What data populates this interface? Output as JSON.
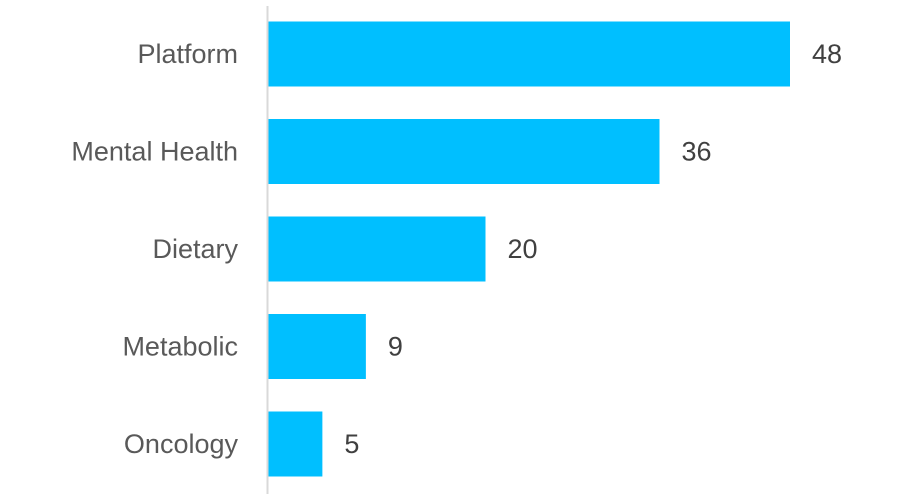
{
  "chart_data": {
    "type": "bar",
    "orientation": "horizontal",
    "categories": [
      "Platform",
      "Mental Health",
      "Dietary",
      "Metabolic",
      "Oncology"
    ],
    "values": [
      48,
      36,
      20,
      9,
      5
    ],
    "title": "",
    "xlabel": "",
    "ylabel": "",
    "xlim": [
      0,
      48
    ],
    "grid": false,
    "legend": "none",
    "data_labels": true,
    "bar_color": "#00BFFF",
    "axis_color": "#D9D9D9"
  }
}
